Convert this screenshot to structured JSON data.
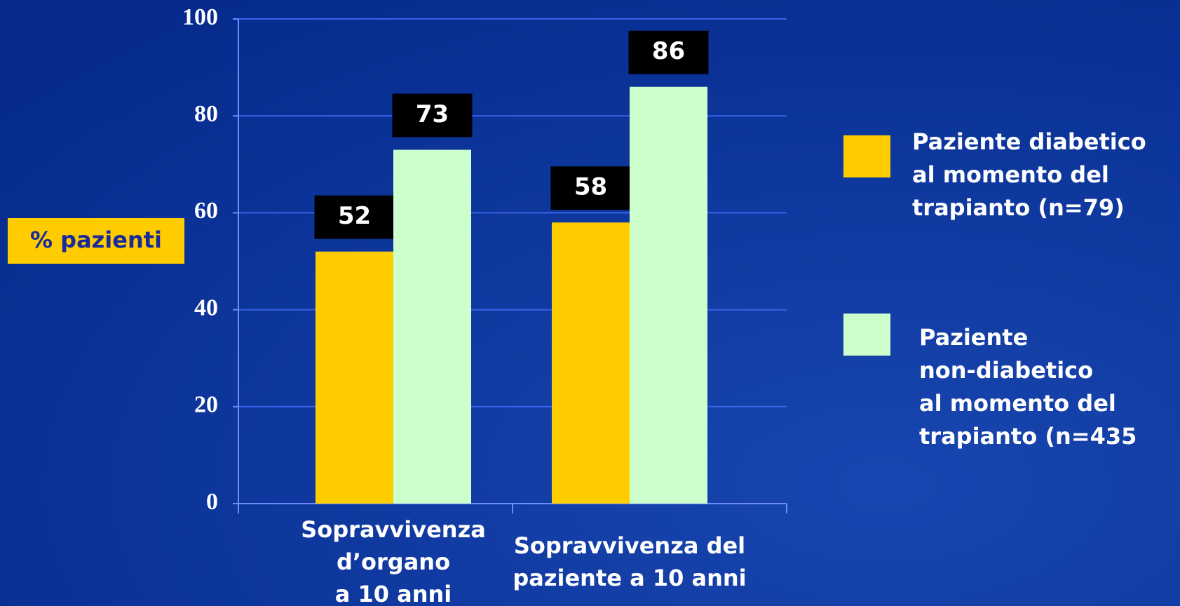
{
  "chart_data": {
    "type": "bar",
    "ylabel": "% pazienti",
    "categories": [
      "Sopravvivenza\nd’organo\na 10 anni",
      "Sopravvivenza del\npaziente a 10 anni"
    ],
    "series": [
      {
        "name": "Paziente diabetico\nal momento del\ntrapianto (n=79)",
        "color": "#ffcc00",
        "values": [
          52,
          58
        ]
      },
      {
        "name": "Paziente\nnon-diabetico\nal momento del\ntrapianto (n=435",
        "color": "#ccffcc",
        "values": [
          73,
          86
        ]
      }
    ],
    "ylim": [
      0,
      100
    ],
    "yticks": [
      0,
      20,
      40,
      60,
      80,
      100
    ],
    "grid": true,
    "legend": "right"
  }
}
